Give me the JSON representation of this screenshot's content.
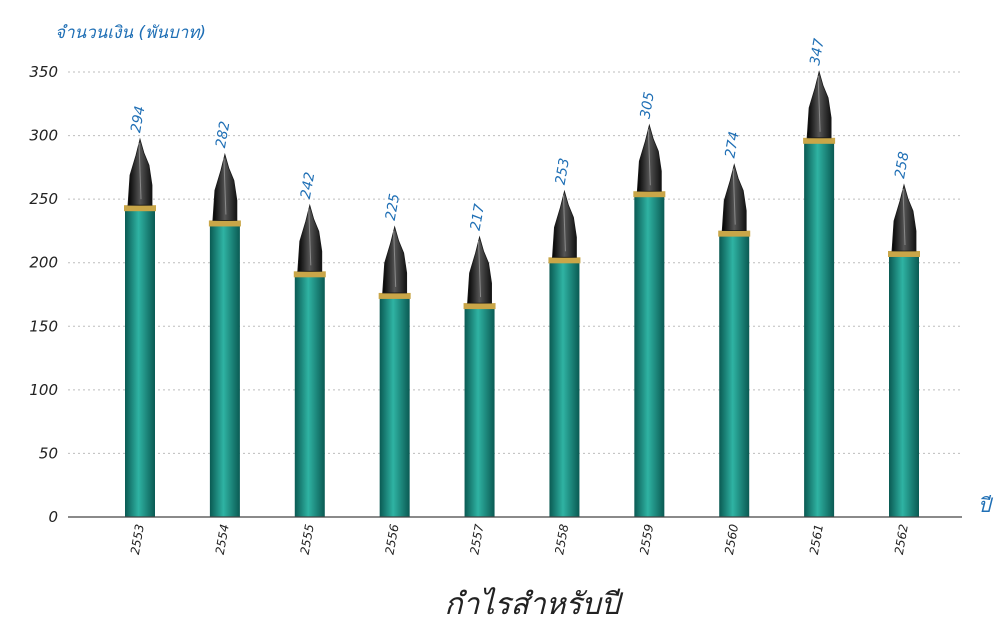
{
  "chart_data": {
    "type": "bar",
    "title": "กำไรสำหรับปี",
    "ylabel": "จำนวนเงิน (พันบาท)",
    "xlabel": "ปี",
    "categories": [
      "2553",
      "2554",
      "2555",
      "2556",
      "2557",
      "2558",
      "2559",
      "2560",
      "2561",
      "2562"
    ],
    "values": [
      294,
      282,
      242,
      225,
      217,
      253,
      305,
      274,
      347,
      258
    ],
    "ylim": [
      0,
      350
    ],
    "yticks": [
      0,
      50,
      100,
      150,
      200,
      250,
      300,
      350
    ],
    "grid": true,
    "colors": {
      "bar": "#0e7f74",
      "bar_dark": "#0a5a53",
      "bar_light": "#2fb3a3",
      "band": "#c9a648",
      "nib": "#1a1a1a",
      "label": "#1f6fb5",
      "grid": "#bdbdbd"
    }
  }
}
